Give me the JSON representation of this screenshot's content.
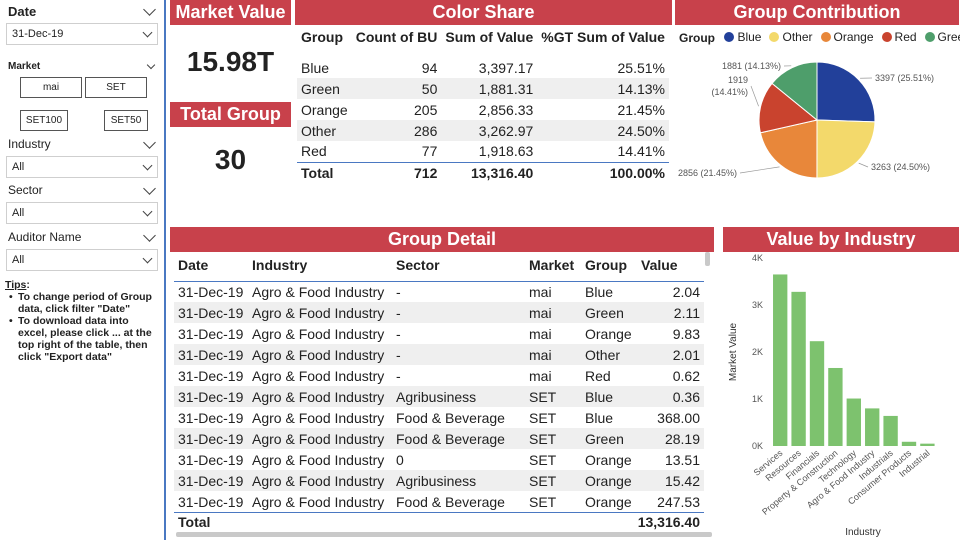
{
  "sidebar": {
    "date": {
      "title": "Date",
      "value": "31-Dec-19"
    },
    "market": {
      "title": "Market",
      "chips": [
        "mai",
        "SET",
        "SET100",
        "SET50"
      ]
    },
    "industry": {
      "title": "Industry",
      "value": "All"
    },
    "sector": {
      "title": "Sector",
      "value": "All"
    },
    "auditor": {
      "title": "Auditor Name",
      "value": "All"
    },
    "tips": {
      "title": "Tips",
      "items": [
        "To change period of Group data, click filter \"Date\"",
        "To download data into excel, please click ... at the top right of the table, then click \"Export data\""
      ]
    }
  },
  "kpi": {
    "market_value_label": "Market Value",
    "market_value": "15.98T",
    "total_group_label": "Total Group",
    "total_group": "30"
  },
  "color_share": {
    "title": "Color Share",
    "columns": [
      "Group",
      "Count of BU",
      "Sum of Value",
      "%GT Sum of Value"
    ],
    "rows": [
      [
        "Blue",
        "94",
        "3,397.17",
        "25.51%"
      ],
      [
        "Green",
        "50",
        "1,881.31",
        "14.13%"
      ],
      [
        "Orange",
        "205",
        "2,856.33",
        "21.45%"
      ],
      [
        "Other",
        "286",
        "3,262.97",
        "24.50%"
      ],
      [
        "Red",
        "77",
        "1,918.63",
        "14.41%"
      ]
    ],
    "total": [
      "Total",
      "712",
      "13,316.40",
      "100.00%"
    ]
  },
  "group_contribution": {
    "title": "Group Contribution",
    "legend_title": "Group",
    "colors": {
      "Blue": "#22409a",
      "Other": "#f3d96b",
      "Orange": "#e8873a",
      "Red": "#c9432e",
      "Green": "#4e9e6b"
    },
    "chart_data": {
      "type": "pie",
      "slices": [
        {
          "name": "Blue",
          "value": 3397,
          "label": "3397 (25.51%)"
        },
        {
          "name": "Other",
          "value": 3263,
          "label": "3263 (24.50%)"
        },
        {
          "name": "Orange",
          "value": 2856,
          "label": "2856 (21.45%)"
        },
        {
          "name": "Red",
          "value": 1919,
          "label": "1919 (14.41%)"
        },
        {
          "name": "Green",
          "value": 1881,
          "label": "1881 (14.13%)"
        }
      ],
      "legend_order": [
        "Blue",
        "Other",
        "Orange",
        "Red",
        "Green"
      ]
    }
  },
  "group_detail": {
    "title": "Group Detail",
    "columns": [
      "Date",
      "Industry",
      "Sector",
      "Market",
      "Group",
      "Value"
    ],
    "rows": [
      [
        "31-Dec-19",
        "Agro & Food Industry",
        "-",
        "mai",
        "Blue",
        "2.04"
      ],
      [
        "31-Dec-19",
        "Agro & Food Industry",
        "-",
        "mai",
        "Green",
        "2.11"
      ],
      [
        "31-Dec-19",
        "Agro & Food Industry",
        "-",
        "mai",
        "Orange",
        "9.83"
      ],
      [
        "31-Dec-19",
        "Agro & Food Industry",
        "-",
        "mai",
        "Other",
        "2.01"
      ],
      [
        "31-Dec-19",
        "Agro & Food Industry",
        "-",
        "mai",
        "Red",
        "0.62"
      ],
      [
        "31-Dec-19",
        "Agro & Food Industry",
        "Agribusiness",
        "SET",
        "Blue",
        "0.36"
      ],
      [
        "31-Dec-19",
        "Agro & Food Industry",
        "Food & Beverage",
        "SET",
        "Blue",
        "368.00"
      ],
      [
        "31-Dec-19",
        "Agro & Food Industry",
        "Food & Beverage",
        "SET",
        "Green",
        "28.19"
      ],
      [
        "31-Dec-19",
        "Agro & Food Industry",
        "0",
        "SET",
        "Orange",
        "13.51"
      ],
      [
        "31-Dec-19",
        "Agro & Food Industry",
        "Agribusiness",
        "SET",
        "Orange",
        "15.42"
      ],
      [
        "31-Dec-19",
        "Agro & Food Industry",
        "Food & Beverage",
        "SET",
        "Orange",
        "247.53"
      ]
    ],
    "total_label": "Total",
    "total_value": "13,316.40"
  },
  "value_by_industry": {
    "title": "Value by Industry",
    "bar_color": "#7dc26e",
    "chart_data": {
      "type": "bar",
      "categories": [
        "Services",
        "Resources",
        "Financials",
        "Property & Construction",
        "Technology",
        "Agro & Food Industry",
        "Industrials",
        "Consumer Products",
        "Industrial",
        ""
      ],
      "values": [
        3650,
        3280,
        2230,
        1660,
        1010,
        800,
        640,
        90,
        50,
        0
      ],
      "xlabel": "Industry",
      "ylabel": "Market Value",
      "yticks": [
        "0K",
        "1K",
        "2K",
        "3K",
        "4K"
      ],
      "ylim": [
        0,
        4000
      ]
    }
  }
}
